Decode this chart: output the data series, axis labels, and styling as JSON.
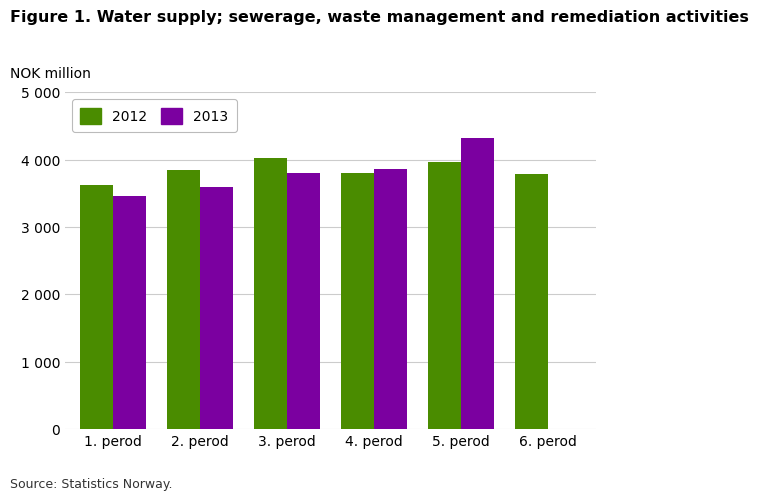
{
  "title": "Figure 1. Water supply; sewerage, waste management and remediation activities",
  "ylabel": "NOK million",
  "source": "Source: Statistics Norway.",
  "categories": [
    "1. perod",
    "2. perod",
    "3. perod",
    "4. perod",
    "5. perod",
    "6. perod"
  ],
  "series": {
    "2012": [
      3620,
      3840,
      4030,
      3800,
      3970,
      3780
    ],
    "2013": [
      3460,
      3600,
      3800,
      3860,
      4320,
      null
    ]
  },
  "color_2012": "#4a8c00",
  "color_2013": "#7b00a0",
  "ylim": [
    0,
    5000
  ],
  "yticks": [
    0,
    1000,
    2000,
    3000,
    4000,
    5000
  ],
  "background_color": "#ffffff",
  "plot_bg_color": "#ffffff",
  "grid_color": "#cccccc",
  "title_fontsize": 11.5,
  "label_fontsize": 10,
  "tick_fontsize": 10,
  "legend_fontsize": 10,
  "bar_width": 0.38
}
